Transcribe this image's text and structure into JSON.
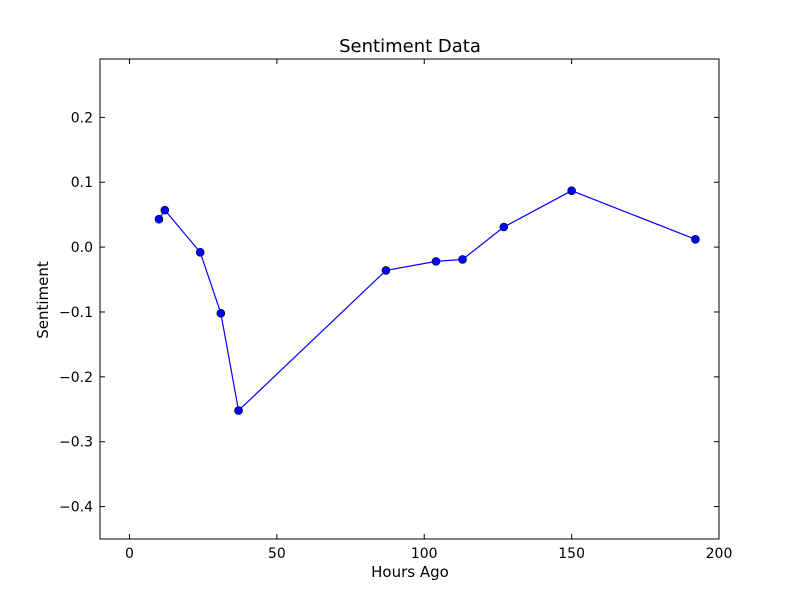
{
  "chart_data": {
    "type": "line",
    "title": "Sentiment Data",
    "xlabel": "Hours Ago",
    "ylabel": "Sentiment",
    "xlim": [
      -10,
      200
    ],
    "ylim": [
      -0.45,
      0.29
    ],
    "x_ticks": [
      0,
      50,
      100,
      150,
      200
    ],
    "x_tick_labels": [
      "0",
      "50",
      "100",
      "150",
      "200"
    ],
    "y_ticks": [
      0.2,
      0.1,
      0.0,
      -0.1,
      -0.2,
      -0.3,
      -0.4
    ],
    "y_tick_labels": [
      "0.2",
      "0.1",
      "0.0",
      "−0.1",
      "−0.2",
      "−0.3",
      "−0.4"
    ],
    "grid": false,
    "series": [
      {
        "color": "#0000ff",
        "marker": "circle",
        "x": [
          10,
          12,
          24,
          31,
          37,
          87,
          104,
          113,
          127,
          150,
          192
        ],
        "y": [
          0.043,
          0.057,
          -0.008,
          -0.102,
          -0.252,
          -0.036,
          -0.022,
          -0.019,
          0.031,
          0.087,
          0.012
        ]
      }
    ]
  }
}
